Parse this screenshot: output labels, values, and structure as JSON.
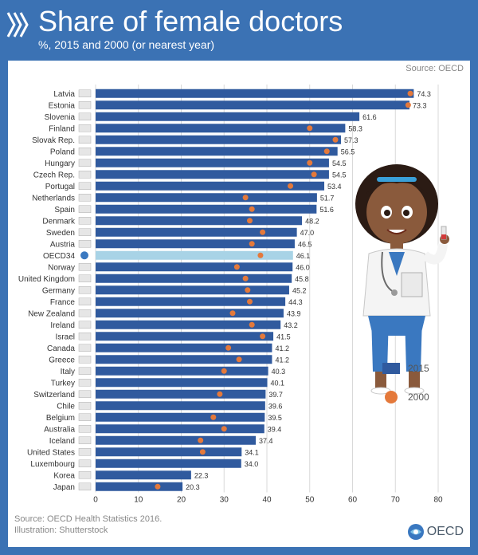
{
  "header": {
    "title": "Share of female doctors",
    "subtitle": "%, 2015 and 2000 (or nearest year)",
    "bg_color": "#3b72b4"
  },
  "source_top": "Source: OECD",
  "footer": {
    "source": "Source: OECD Health Statistics 2016.",
    "illustration": "Illustration: Shutterstock"
  },
  "logo": {
    "text": "OECD",
    "icon": "oecd-globe-icon"
  },
  "illustration": {
    "icon": "female-doctor-illustration"
  },
  "colors": {
    "bar": "#305a9e",
    "highlight_bar": "#a8d3e6",
    "dot": "#e4793b",
    "axis_text": "#333333"
  },
  "chart_data": {
    "type": "bar",
    "orientation": "horizontal",
    "categories": [
      "Latvia",
      "Estonia",
      "Slovenia",
      "Finland",
      "Slovak Rep.",
      "Poland",
      "Hungary",
      "Czech Rep.",
      "Portugal",
      "Netherlands",
      "Spain",
      "Denmark",
      "Sweden",
      "Austria",
      "OECD34",
      "Norway",
      "United Kingdom",
      "Germany",
      "France",
      "New Zealand",
      "Ireland",
      "Israel",
      "Canada",
      "Greece",
      "Italy",
      "Turkey",
      "Switzerland",
      "Chile",
      "Belgium",
      "Australia",
      "Iceland",
      "United States",
      "Luxembourg",
      "Korea",
      "Japan"
    ],
    "highlight": "OECD34",
    "series": [
      {
        "name": "2015",
        "mark": "bar",
        "values": [
          74.3,
          73.3,
          61.6,
          58.3,
          57.3,
          56.5,
          54.5,
          54.5,
          53.4,
          51.7,
          51.6,
          48.2,
          47.0,
          46.5,
          46.1,
          46.0,
          45.8,
          45.2,
          44.3,
          43.9,
          43.2,
          41.5,
          41.2,
          41.2,
          40.3,
          40.1,
          39.7,
          39.6,
          39.5,
          39.4,
          37.4,
          34.1,
          34.0,
          22.3,
          20.3
        ],
        "labels": [
          "74.3",
          "73.3",
          "61.6",
          "58.3",
          "57.3",
          "56.5",
          "54.5",
          "54.5",
          "53.4",
          "51.7",
          "51.6",
          "48.2",
          "47.0",
          "46.5",
          "46.1",
          "46.0",
          "45.8",
          "45.2",
          "44.3",
          "43.9",
          "43.2",
          "41.5",
          "41.2",
          "41.2",
          "40.3",
          "40.1",
          "39.7",
          "39.6",
          "39.5",
          "39.4",
          "37.4",
          "34.1",
          "34.0",
          "22.3",
          "20.3"
        ]
      },
      {
        "name": "2000",
        "mark": "dot",
        "values": [
          73.5,
          73,
          null,
          50,
          56,
          54,
          50,
          51,
          45.5,
          35,
          36.5,
          36,
          39,
          36.5,
          38.5,
          33,
          35,
          35.5,
          36,
          32,
          36.5,
          39,
          31,
          33.5,
          30,
          null,
          29,
          null,
          27.5,
          30,
          24.5,
          25,
          null,
          null,
          14.5
        ]
      }
    ],
    "xlabel": "%",
    "xlim": [
      0,
      80
    ],
    "xticks": [
      "0",
      "10",
      "20",
      "30",
      "40",
      "50",
      "60",
      "70",
      "80"
    ],
    "grid": true,
    "legend_position": "right",
    "flags": [
      "flag-latvia-icon",
      "flag-estonia-icon",
      "flag-slovenia-icon",
      "flag-finland-icon",
      "flag-slovak-rep-icon",
      "flag-poland-icon",
      "flag-hungary-icon",
      "flag-czech-rep-icon",
      "flag-portugal-icon",
      "flag-netherlands-icon",
      "flag-spain-icon",
      "flag-denmark-icon",
      "flag-sweden-icon",
      "flag-austria-icon",
      "oecd-globe-icon",
      "flag-norway-icon",
      "flag-united-kingdom-icon",
      "flag-germany-icon",
      "flag-france-icon",
      "flag-new-zealand-icon",
      "flag-ireland-icon",
      "flag-israel-icon",
      "flag-canada-icon",
      "flag-greece-icon",
      "flag-italy-icon",
      "flag-turkey-icon",
      "flag-switzerland-icon",
      "flag-chile-icon",
      "flag-belgium-icon",
      "flag-australia-icon",
      "flag-iceland-icon",
      "flag-united-states-icon",
      "flag-luxembourg-icon",
      "flag-korea-icon",
      "flag-japan-icon"
    ]
  }
}
